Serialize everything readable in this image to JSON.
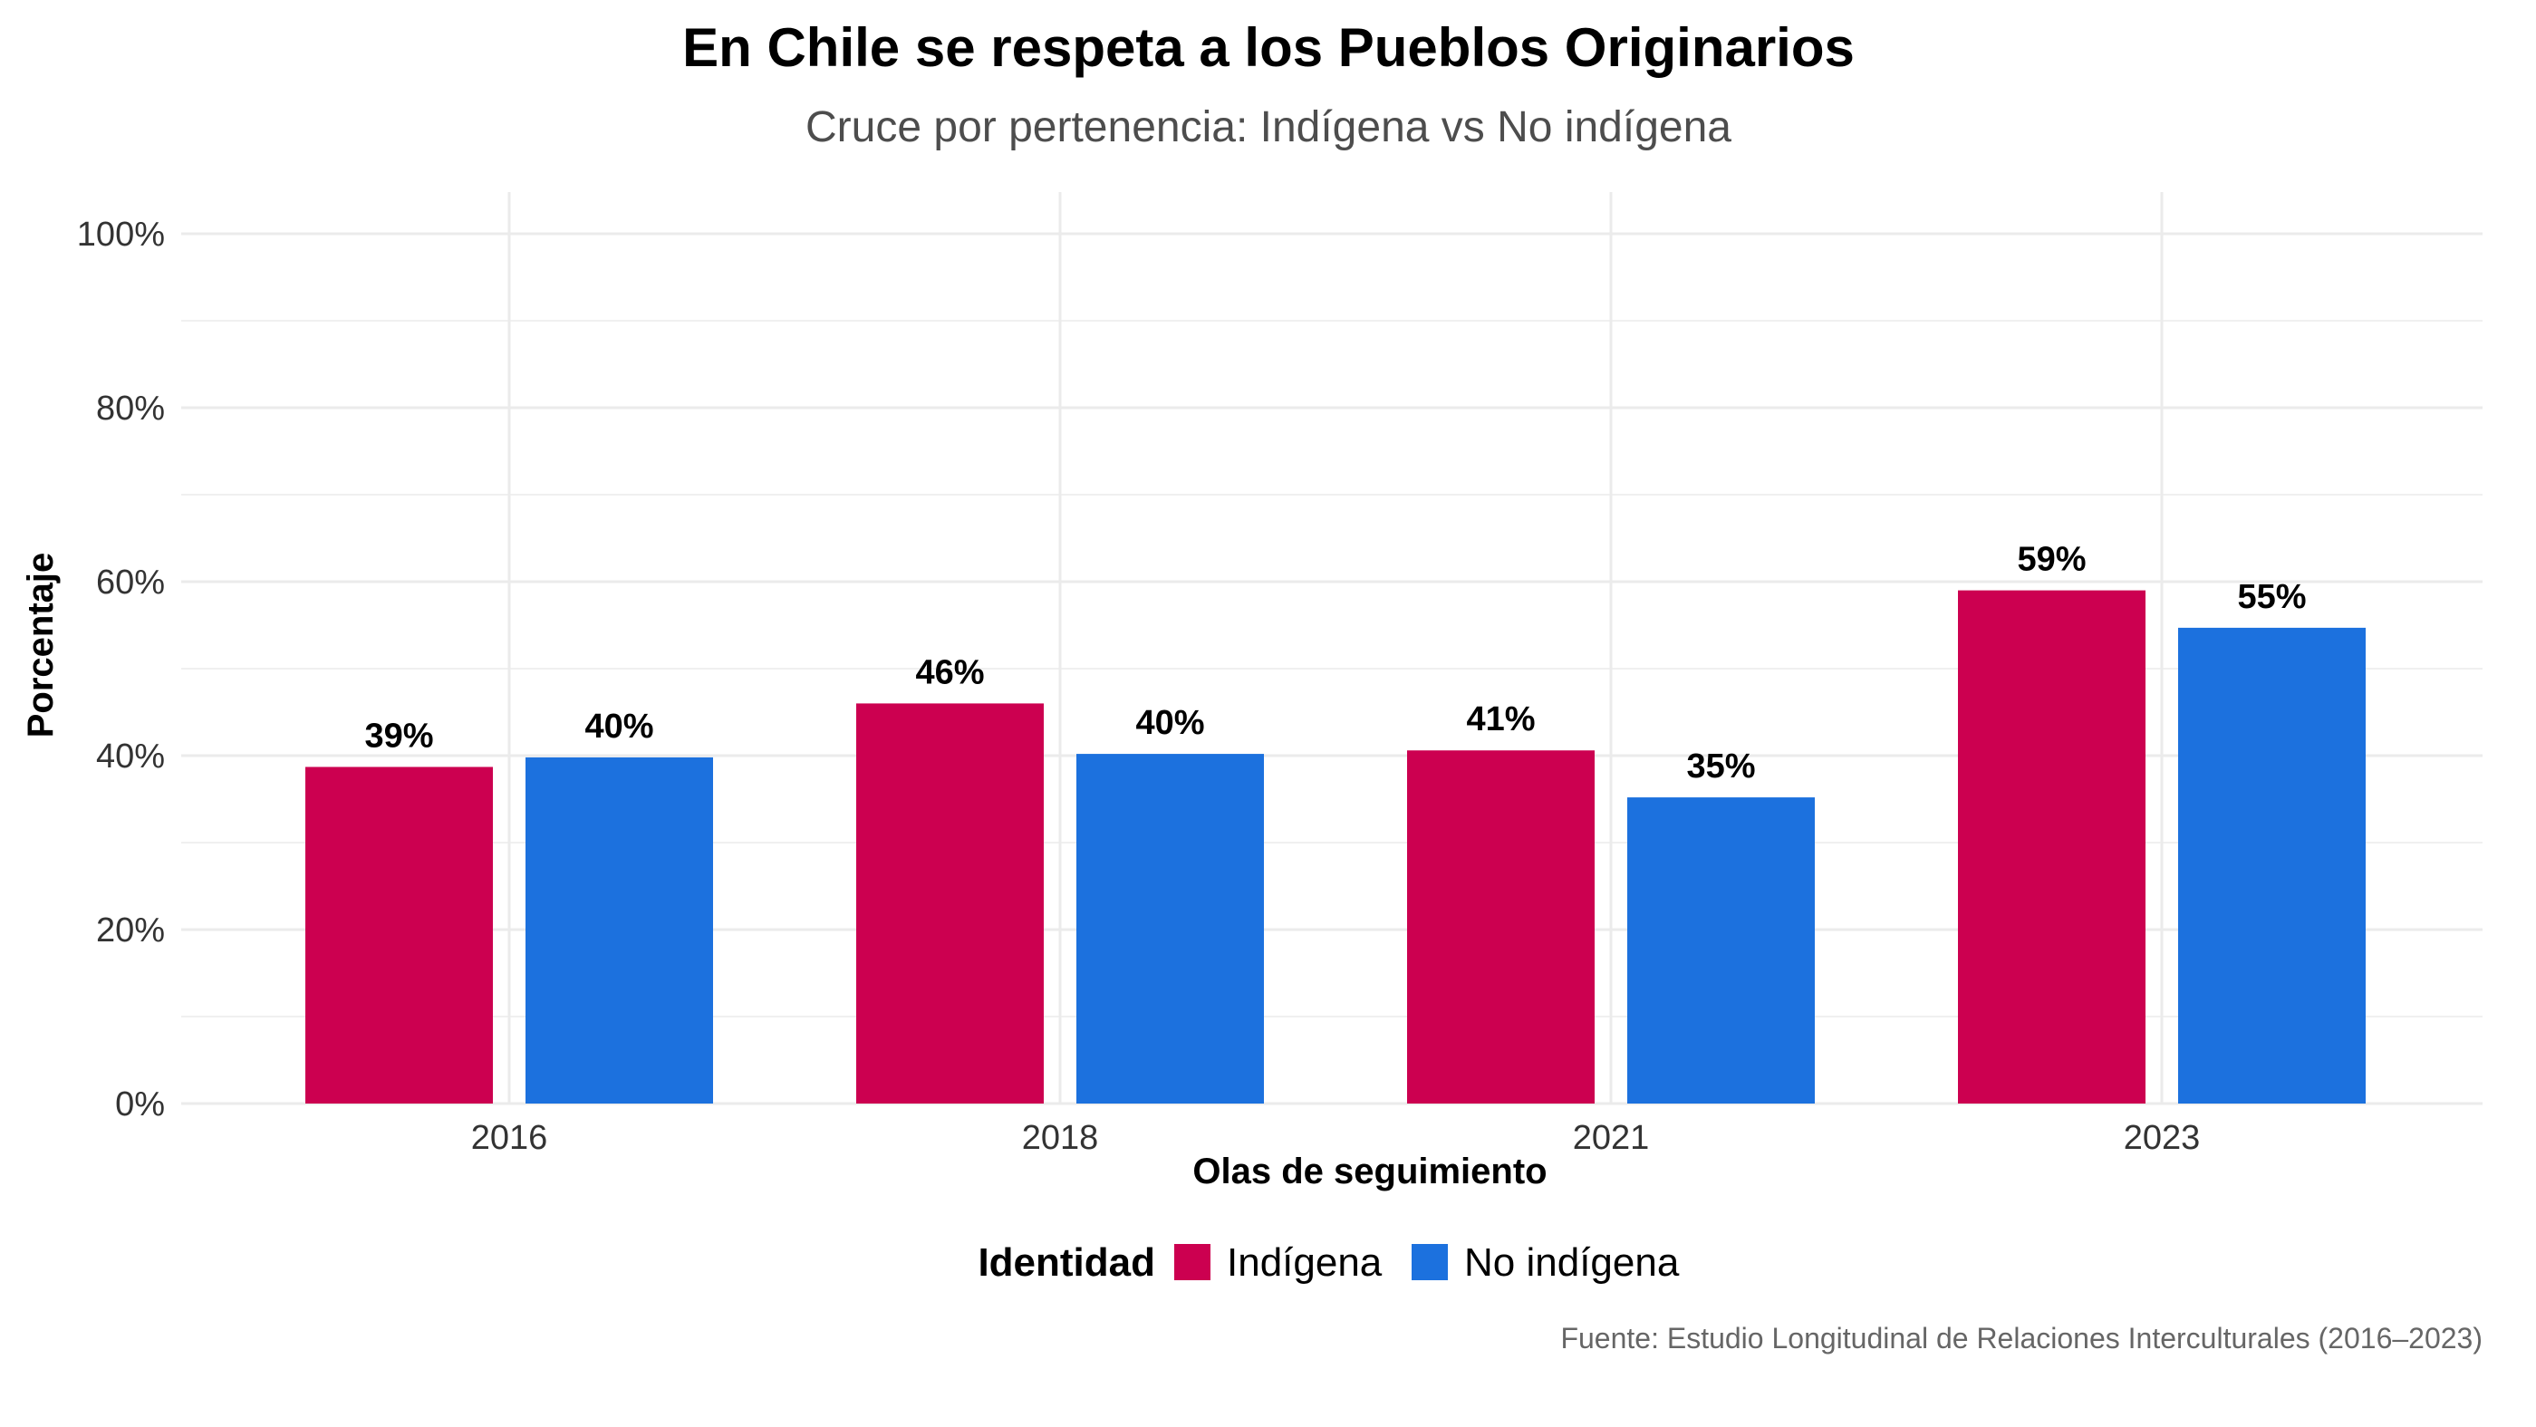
{
  "chart_data": {
    "type": "bar",
    "title": "En Chile se respeta a los Pueblos Originarios",
    "subtitle": "Cruce por pertenencia: Indígena vs No indígena",
    "xlabel": "Olas de seguimiento",
    "ylabel": "Porcentaje",
    "categories": [
      "2016",
      "2018",
      "2021",
      "2023"
    ],
    "series": [
      {
        "name": "Indígena",
        "color": "#cc0050",
        "values": [
          38.7,
          46.0,
          40.6,
          59.0
        ],
        "labels": [
          "39%",
          "46%",
          "41%",
          "59%"
        ]
      },
      {
        "name": "No indígena",
        "color": "#1c71de",
        "values": [
          39.8,
          40.2,
          35.2,
          54.7
        ],
        "labels": [
          "40%",
          "40%",
          "35%",
          "55%"
        ]
      }
    ],
    "ylim": [
      0,
      100
    ],
    "yticks": [
      0,
      20,
      40,
      60,
      80,
      100
    ],
    "ytick_labels": [
      "0%",
      "20%",
      "40%",
      "60%",
      "80%",
      "100%"
    ],
    "grid": true,
    "legend": {
      "title": "Identidad",
      "position": "bottom"
    },
    "caption": "Fuente: Estudio Longitudinal de Relaciones Interculturales (2016–2023)"
  }
}
